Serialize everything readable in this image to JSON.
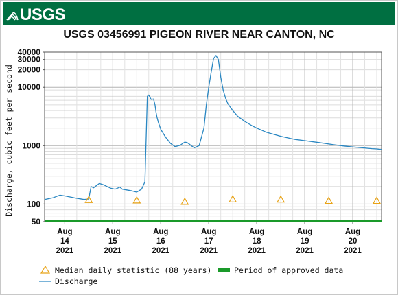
{
  "header": {
    "logo_text": "USGS"
  },
  "colors": {
    "header_green": "#006f41",
    "discharge": "#2a87c2",
    "median": "#e8a317",
    "approved": "#1a9a2a"
  },
  "chart_data": {
    "type": "line",
    "title": "USGS 03456991 PIGEON RIVER NEAR CANTON, NC",
    "ylabel": "Discharge, cubic feet per second",
    "y_scale": "log",
    "ylim": [
      50,
      40000
    ],
    "y_ticks": [
      {
        "value": 50,
        "label": "50"
      },
      {
        "value": 100,
        "label": "100"
      },
      {
        "value": 1000,
        "label": "1000"
      },
      {
        "value": 10000,
        "label": "10000"
      },
      {
        "value": 20000,
        "label": "20000"
      },
      {
        "value": 30000,
        "label": "30000"
      },
      {
        "value": 40000,
        "label": "40000"
      }
    ],
    "x_range_days": [
      13.58,
      20.6
    ],
    "x_ticks": [
      {
        "day": 14,
        "label": [
          "Aug",
          "14",
          "2021"
        ]
      },
      {
        "day": 15,
        "label": [
          "Aug",
          "15",
          "2021"
        ]
      },
      {
        "day": 16,
        "label": [
          "Aug",
          "16",
          "2021"
        ]
      },
      {
        "day": 17,
        "label": [
          "Aug",
          "17",
          "2021"
        ]
      },
      {
        "day": 18,
        "label": [
          "Aug",
          "18",
          "2021"
        ]
      },
      {
        "day": 19,
        "label": [
          "Aug",
          "19",
          "2021"
        ]
      },
      {
        "day": 20,
        "label": [
          "Aug",
          "20",
          "2021"
        ]
      }
    ],
    "grid": true,
    "legend": {
      "placement": "bottom-left"
    },
    "series": [
      {
        "name": "Discharge",
        "x_days": [
          13.58,
          13.75,
          13.9,
          14.0,
          14.2,
          14.4,
          14.5,
          14.55,
          14.6,
          14.72,
          14.8,
          14.95,
          15.05,
          15.15,
          15.2,
          15.28,
          15.4,
          15.5,
          15.6,
          15.67,
          15.72,
          15.75,
          15.8,
          15.85,
          15.88,
          15.9,
          15.92,
          15.95,
          16.0,
          16.1,
          16.2,
          16.3,
          16.4,
          16.5,
          16.55,
          16.6,
          16.65,
          16.7,
          16.8,
          16.9,
          16.95,
          17.0,
          17.05,
          17.1,
          17.15,
          17.2,
          17.25,
          17.3,
          17.35,
          17.4,
          17.5,
          17.6,
          17.75,
          17.9,
          18.0,
          18.2,
          18.5,
          18.8,
          19.0,
          19.3,
          19.6,
          19.8,
          20.0,
          20.2,
          20.4,
          20.5,
          20.6
        ],
        "values": [
          120,
          128,
          142,
          138,
          128,
          120,
          122,
          200,
          190,
          225,
          215,
          188,
          180,
          195,
          180,
          175,
          168,
          160,
          180,
          240,
          7000,
          7400,
          6200,
          6300,
          5000,
          3800,
          3100,
          2500,
          1900,
          1400,
          1100,
          960,
          1010,
          1150,
          1130,
          1060,
          980,
          920,
          1000,
          2000,
          5000,
          10000,
          18000,
          31000,
          35000,
          30000,
          15000,
          9000,
          6500,
          5200,
          4000,
          3200,
          2600,
          2200,
          2000,
          1700,
          1450,
          1280,
          1220,
          1130,
          1040,
          990,
          950,
          920,
          890,
          880,
          860
        ]
      },
      {
        "name": "Median daily statistic (88 years)",
        "marker": "triangle",
        "x_days": [
          14.5,
          15.5,
          16.5,
          17.5,
          18.5,
          19.5,
          20.5
        ],
        "values": [
          118,
          116,
          110,
          121,
          120,
          114,
          114
        ]
      },
      {
        "name": "Period of approved data",
        "type": "band",
        "x_days": [
          13.58,
          20.6
        ],
        "value": 50
      }
    ]
  }
}
